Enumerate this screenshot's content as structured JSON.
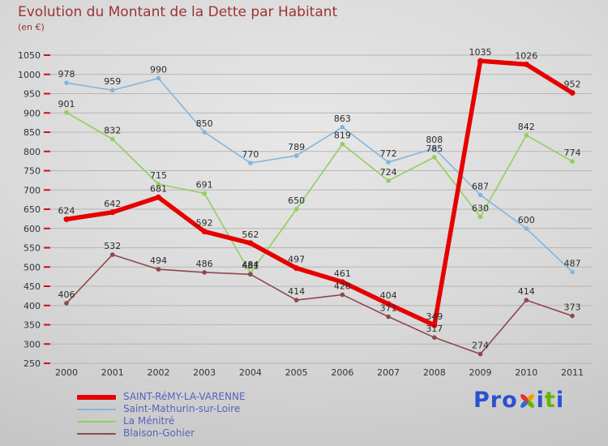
{
  "title": "Evolution du Montant de la Dette par Habitant",
  "subtitle": "(en €)",
  "chart_data": {
    "type": "line",
    "x": [
      "2000",
      "2001",
      "2002",
      "2003",
      "2004",
      "2005",
      "2006",
      "2007",
      "2008",
      "2009",
      "2010",
      "2011"
    ],
    "series": [
      {
        "name": "SAINT-RéMY-LA-VARENNE",
        "color": "#e60000",
        "line_width": 5.5,
        "values": [
          624,
          642,
          681,
          592,
          562,
          497,
          461,
          404,
          349,
          1035,
          1026,
          952
        ]
      },
      {
        "name": "Saint-Mathurin-sur-Loire",
        "color": "#83b5dc",
        "line_width": 1.6,
        "values": [
          978,
          959,
          990,
          850,
          770,
          789,
          863,
          772,
          808,
          687,
          600,
          487
        ]
      },
      {
        "name": "La Ménitré",
        "color": "#92cf5b",
        "line_width": 1.6,
        "values": [
          901,
          832,
          715,
          691,
          484,
          650,
          819,
          724,
          785,
          630,
          842,
          774
        ]
      },
      {
        "name": "Blaison-Gohier",
        "color": "#8e484e",
        "line_width": 1.6,
        "values": [
          406,
          532,
          494,
          486,
          481,
          414,
          428,
          371,
          317,
          274,
          414,
          373
        ]
      }
    ],
    "ylim": [
      250,
      1050
    ],
    "yticks": [
      250,
      300,
      350,
      400,
      450,
      500,
      550,
      600,
      650,
      700,
      750,
      800,
      850,
      900,
      950,
      1000,
      1050
    ],
    "grid": true,
    "legend_position": "bottom-left",
    "xlabel": "",
    "ylabel": ""
  },
  "logo": {
    "pro": "Pro",
    "i1": "i",
    "t": "t",
    "i2": "i"
  }
}
